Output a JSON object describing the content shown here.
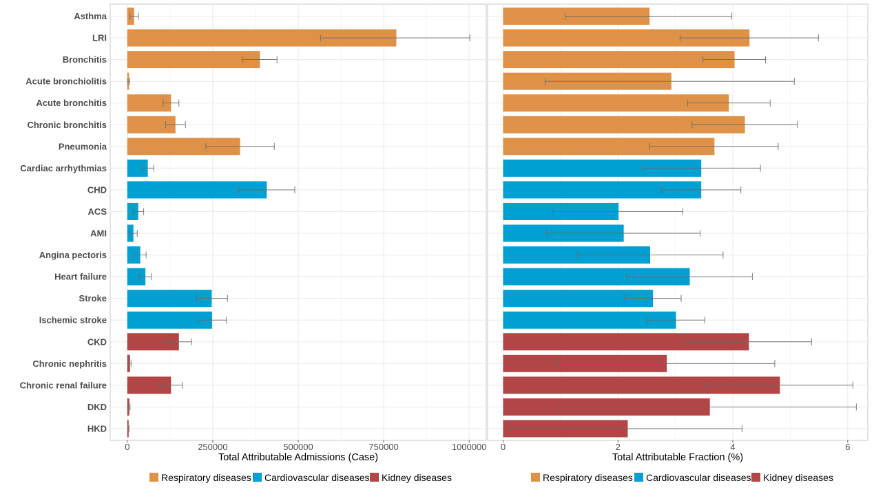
{
  "colors": {
    "respiratory": "#DF9247",
    "cardiovascular": "#00A0D2",
    "kidney": "#B24545",
    "errorbar": "#6b6b6b",
    "grid": "#ebebeb",
    "panel_border": "#c8c8c8"
  },
  "legend": {
    "items": [
      {
        "group": "respiratory",
        "label": "Respiratory diseases"
      },
      {
        "group": "cardiovascular",
        "label": "Cardiovascular diseases"
      },
      {
        "group": "kidney",
        "label": "Kidney diseases"
      }
    ]
  },
  "chart_data": [
    {
      "type": "bar",
      "orientation": "horizontal",
      "xlabel": "Total Attributable Admissions (Case)",
      "xlim": [
        -50000,
        1050000
      ],
      "xticks": [
        0,
        250000,
        500000,
        750000,
        1000000
      ],
      "xtick_labels": [
        "0",
        "250000",
        "500000",
        "750000",
        "1000000"
      ],
      "grid": true,
      "legend_position": "bottom",
      "categories": [
        "Asthma",
        "LRI",
        "Bronchitis",
        "Acute bronchiolitis",
        "Acute bronchitis",
        "Chronic bronchitis",
        "Pneumonia",
        "Cardiac arrhythmias",
        "CHD",
        "ACS",
        "AMI",
        "Angina pectoris",
        "Heart failure",
        "Stroke",
        "Ischemic stroke",
        "CKD",
        "Chronic nephritis",
        "Chronic renal failure",
        "DKD",
        "HKD"
      ],
      "groups": [
        "respiratory",
        "respiratory",
        "respiratory",
        "respiratory",
        "respiratory",
        "respiratory",
        "respiratory",
        "cardiovascular",
        "cardiovascular",
        "cardiovascular",
        "cardiovascular",
        "cardiovascular",
        "cardiovascular",
        "cardiovascular",
        "cardiovascular",
        "kidney",
        "kidney",
        "kidney",
        "kidney",
        "kidney"
      ],
      "values": [
        20000,
        787000,
        388000,
        5000,
        128000,
        141000,
        330000,
        60000,
        408000,
        32000,
        18000,
        38000,
        53000,
        247000,
        248000,
        151000,
        8000,
        128000,
        6000,
        4000
      ],
      "lower": [
        8000,
        565000,
        336000,
        2000,
        105000,
        112000,
        230000,
        44000,
        327000,
        17000,
        7000,
        20000,
        35000,
        203000,
        207000,
        112000,
        5000,
        95000,
        4000,
        2000
      ],
      "upper": [
        32000,
        1002000,
        438000,
        7000,
        151000,
        170000,
        430000,
        77000,
        490000,
        48000,
        29000,
        55000,
        70000,
        293000,
        290000,
        188000,
        11000,
        161000,
        8000,
        5000
      ]
    },
    {
      "type": "bar",
      "orientation": "horizontal",
      "xlabel": "Total Attributable Fraction (%)",
      "xlim": [
        -0.27,
        6.35
      ],
      "xticks": [
        0,
        2,
        4,
        6
      ],
      "xtick_labels": [
        "0",
        "2",
        "4",
        "6"
      ],
      "grid": true,
      "legend_position": "bottom",
      "categories": [
        "Asthma",
        "LRI",
        "Bronchitis",
        "Acute bronchiolitis",
        "Acute bronchitis",
        "Chronic bronchitis",
        "Pneumonia",
        "Cardiac arrhythmias",
        "CHD",
        "ACS",
        "AMI",
        "Angina pectoris",
        "Heart failure",
        "Stroke",
        "Ischemic stroke",
        "CKD",
        "Chronic nephritis",
        "Chronic renal failure",
        "DKD",
        "HKD"
      ],
      "groups": [
        "respiratory",
        "respiratory",
        "respiratory",
        "respiratory",
        "respiratory",
        "respiratory",
        "respiratory",
        "cardiovascular",
        "cardiovascular",
        "cardiovascular",
        "cardiovascular",
        "cardiovascular",
        "cardiovascular",
        "cardiovascular",
        "cardiovascular",
        "kidney",
        "kidney",
        "kidney",
        "kidney",
        "kidney"
      ],
      "values": [
        2.55,
        4.29,
        4.03,
        2.93,
        3.93,
        4.21,
        3.68,
        3.45,
        3.45,
        2.01,
        2.1,
        2.56,
        3.25,
        2.61,
        3.01,
        4.28,
        2.85,
        4.82,
        3.6,
        2.17
      ],
      "lower": [
        1.08,
        3.08,
        3.48,
        0.73,
        3.21,
        3.29,
        2.55,
        2.42,
        2.76,
        0.87,
        0.76,
        1.29,
        2.15,
        2.12,
        2.5,
        3.17,
        0.92,
        3.53,
        0.97,
        0.13
      ],
      "upper": [
        3.98,
        5.49,
        4.57,
        5.07,
        4.65,
        5.12,
        4.79,
        4.48,
        4.14,
        3.13,
        3.43,
        3.83,
        4.34,
        3.1,
        3.51,
        5.37,
        4.73,
        6.09,
        6.15,
        4.16
      ]
    }
  ]
}
